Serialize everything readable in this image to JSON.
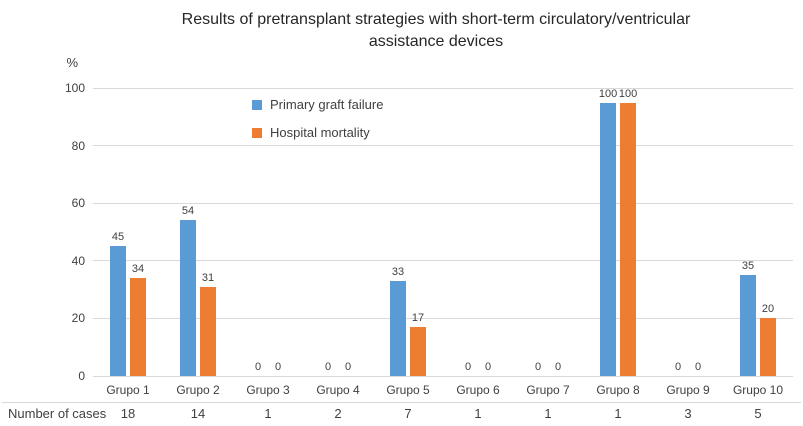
{
  "chart_data": {
    "type": "bar",
    "title": "Results of pretransplant strategies with short-term circulatory/ventricular assistance devices",
    "ylabel": "%",
    "ylim": [
      0,
      100
    ],
    "yticks": [
      0,
      20,
      40,
      60,
      80,
      100
    ],
    "grid": true,
    "legend_position": "inside-top-left",
    "categories": [
      "Grupo 1",
      "Grupo 2",
      "Grupo 3",
      "Grupo 4",
      "Grupo 5",
      "Grupo 6",
      "Grupo 7",
      "Grupo 8",
      "Grupo 9",
      "Grupo 10"
    ],
    "series": [
      {
        "name": "Primary graft failure",
        "color": "#5B9BD5",
        "values": [
          45,
          54,
          0,
          0,
          33,
          0,
          0,
          100,
          0,
          35
        ]
      },
      {
        "name": "Hospital mortality",
        "color": "#ED7D31",
        "values": [
          34,
          31,
          0,
          0,
          17,
          0,
          0,
          100,
          0,
          20
        ]
      }
    ],
    "data_labels": true,
    "table_row": {
      "label": "Number of cases",
      "values": [
        18,
        14,
        1,
        2,
        7,
        1,
        1,
        1,
        3,
        5
      ]
    }
  },
  "colors": {
    "gridline": "#d9d9d9",
    "axis_text": "#404040",
    "title_text": "#262626",
    "background": "#ffffff"
  }
}
